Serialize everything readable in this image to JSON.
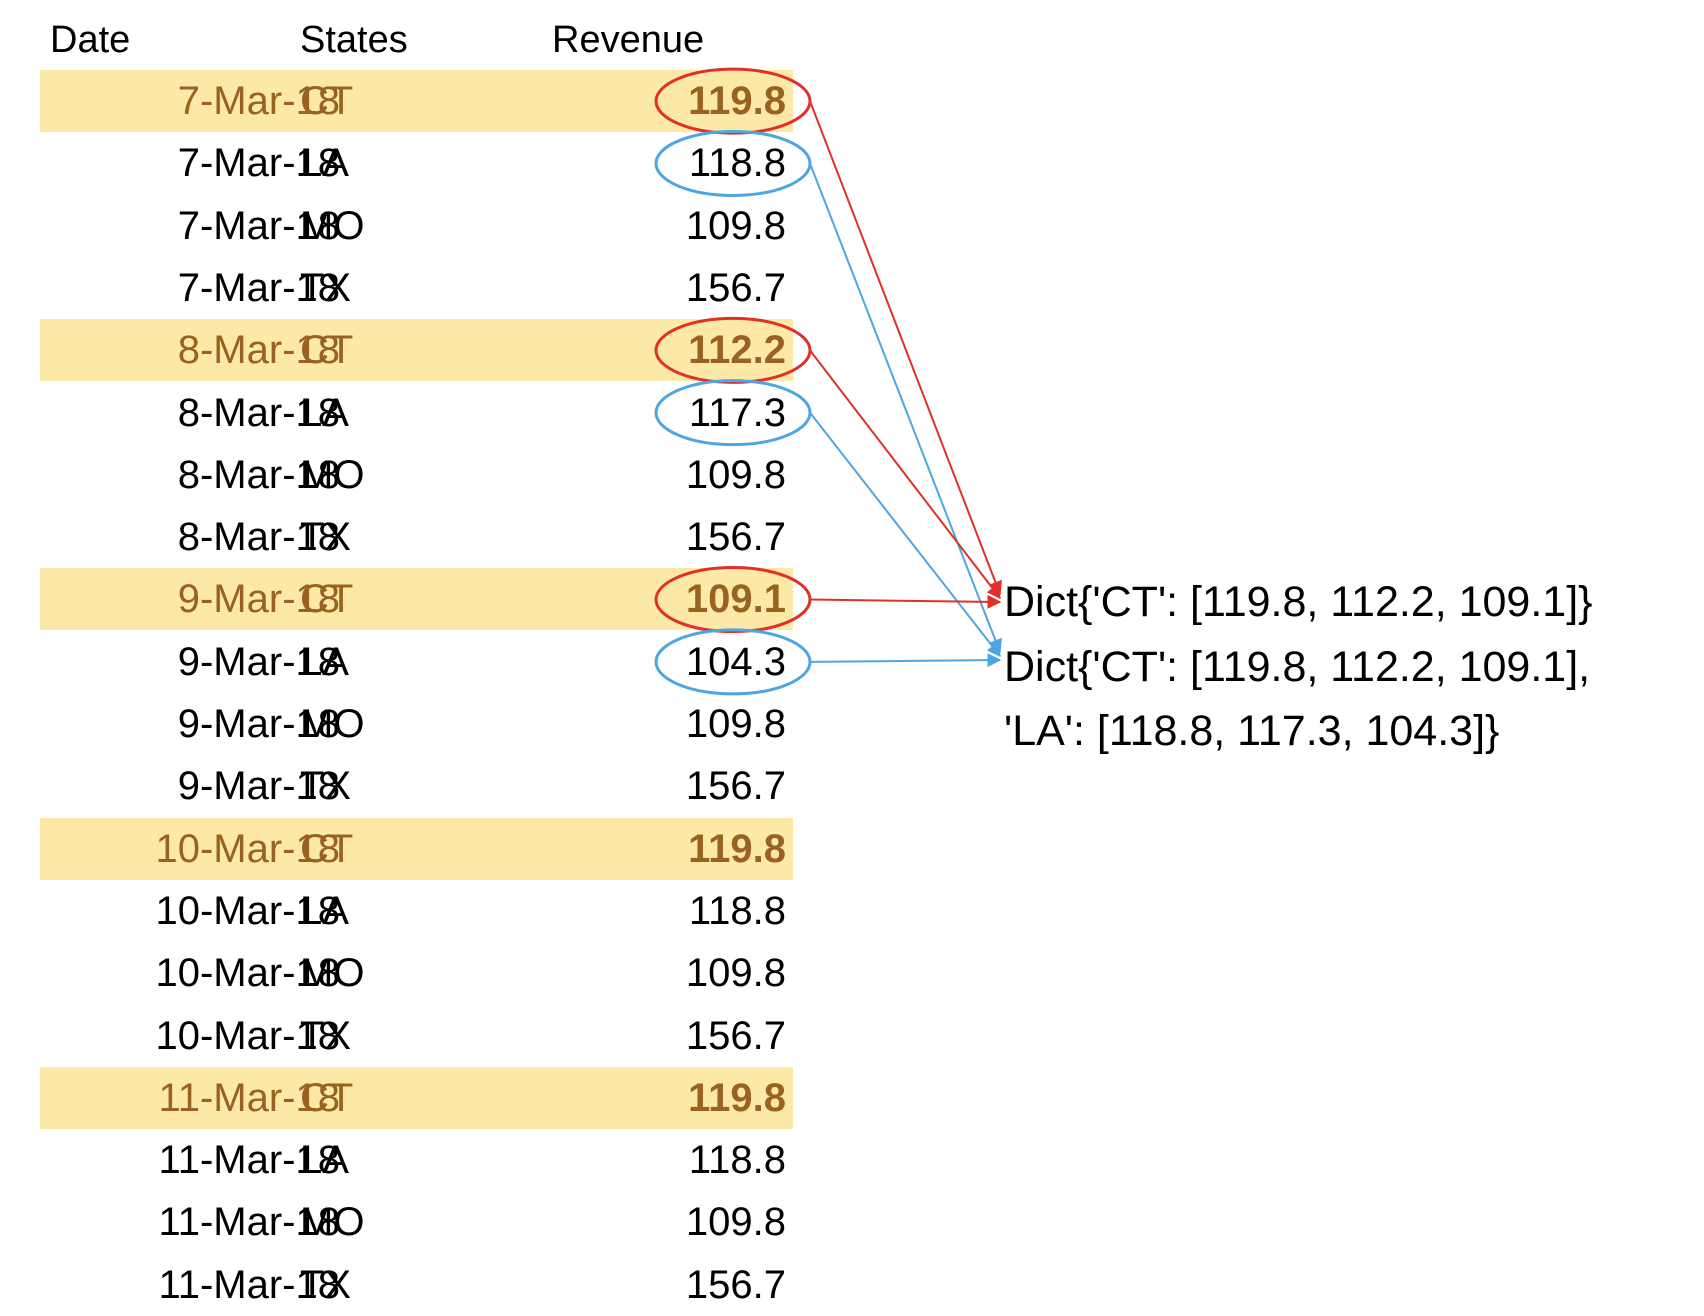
{
  "header": {
    "date": "Date",
    "states": "States",
    "revenue": "Revenue"
  },
  "rows": [
    {
      "date": "7-Mar-18",
      "state": "CT",
      "revenue": "119.8",
      "highlight": true,
      "circle": "red"
    },
    {
      "date": "7-Mar-18",
      "state": "LA",
      "revenue": "118.8",
      "highlight": false,
      "circle": "blue"
    },
    {
      "date": "7-Mar-18",
      "state": "MO",
      "revenue": "109.8",
      "highlight": false,
      "circle": ""
    },
    {
      "date": "7-Mar-18",
      "state": "TX",
      "revenue": "156.7",
      "highlight": false,
      "circle": ""
    },
    {
      "date": "8-Mar-18",
      "state": "CT",
      "revenue": "112.2",
      "highlight": true,
      "circle": "red"
    },
    {
      "date": "8-Mar-18",
      "state": "LA",
      "revenue": "117.3",
      "highlight": false,
      "circle": "blue"
    },
    {
      "date": "8-Mar-18",
      "state": "MO",
      "revenue": "109.8",
      "highlight": false,
      "circle": ""
    },
    {
      "date": "8-Mar-18",
      "state": "TX",
      "revenue": "156.7",
      "highlight": false,
      "circle": ""
    },
    {
      "date": "9-Mar-18",
      "state": "CT",
      "revenue": "109.1",
      "highlight": true,
      "circle": "red"
    },
    {
      "date": "9-Mar-18",
      "state": "LA",
      "revenue": "104.3",
      "highlight": false,
      "circle": "blue"
    },
    {
      "date": "9-Mar-18",
      "state": "MO",
      "revenue": "109.8",
      "highlight": false,
      "circle": ""
    },
    {
      "date": "9-Mar-18",
      "state": "TX",
      "revenue": "156.7",
      "highlight": false,
      "circle": ""
    },
    {
      "date": "10-Mar-18",
      "state": "CT",
      "revenue": "119.8",
      "highlight": true,
      "circle": ""
    },
    {
      "date": "10-Mar-18",
      "state": "LA",
      "revenue": "118.8",
      "highlight": false,
      "circle": ""
    },
    {
      "date": "10-Mar-18",
      "state": "MO",
      "revenue": "109.8",
      "highlight": false,
      "circle": ""
    },
    {
      "date": "10-Mar-18",
      "state": "TX",
      "revenue": "156.7",
      "highlight": false,
      "circle": ""
    },
    {
      "date": "11-Mar-18",
      "state": "CT",
      "revenue": "119.8",
      "highlight": true,
      "circle": ""
    },
    {
      "date": "11-Mar-18",
      "state": "LA",
      "revenue": "118.8",
      "highlight": false,
      "circle": ""
    },
    {
      "date": "11-Mar-18",
      "state": "MO",
      "revenue": "109.8",
      "highlight": false,
      "circle": ""
    },
    {
      "date": "11-Mar-18",
      "state": "TX",
      "revenue": "156.7",
      "highlight": false,
      "circle": ""
    }
  ],
  "dicts": {
    "dict_ct": "Dict{'CT': [119.8, 112.2, 109.1]}",
    "dict_ct_la_line1": "Dict{'CT': [119.8, 112.2, 109.1],",
    "dict_ct_la_line2": "'LA': [118.8, 117.3, 104.3]}"
  },
  "colors": {
    "highlight_bg": "#fce9a7",
    "highlight_text": "#9a6222",
    "red": "#e0302a",
    "blue": "#4ea6e0"
  }
}
